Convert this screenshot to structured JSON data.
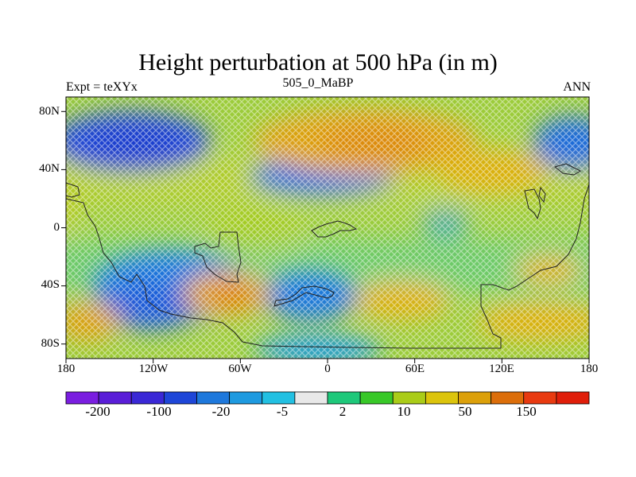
{
  "figure": {
    "title": "Height perturbation at 500 hPa (in m)",
    "left_string": "Expt = teXYx",
    "center_string": "505_0_MaBP",
    "right_string": "ANN"
  },
  "map": {
    "lon_labels": [
      "180",
      "120W",
      "60W",
      "0",
      "60E",
      "120E",
      "180"
    ],
    "lat_labels": [
      "80N",
      "40N",
      "0",
      "40S",
      "80S"
    ],
    "lat_values": [
      80,
      40,
      0,
      -40,
      -80
    ],
    "lon_values": [
      -180,
      -120,
      -60,
      0,
      60,
      120,
      180
    ]
  },
  "colorbar": {
    "colors": [
      "#7a1ee0",
      "#5a1ed8",
      "#3a28d6",
      "#1e46d8",
      "#1e78dc",
      "#1e9ae0",
      "#22c0e2",
      "#e8e8e8",
      "#1ec87a",
      "#38c828",
      "#aacc18",
      "#dcc40c",
      "#dca00a",
      "#dc6e0a",
      "#e83a10",
      "#e01e0a"
    ],
    "tick_labels": [
      "-200",
      "-100",
      "-20",
      "-5",
      "2",
      "10",
      "50",
      "150"
    ]
  }
}
